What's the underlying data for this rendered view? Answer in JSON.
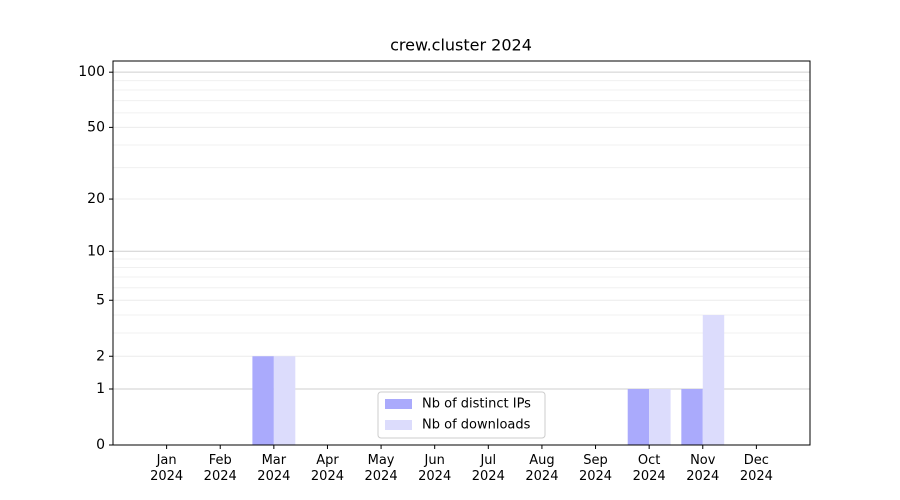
{
  "chart_data": {
    "type": "bar",
    "title": "crew.cluster 2024",
    "categories": [
      "Jan\n2024",
      "Feb\n2024",
      "Mar\n2024",
      "Apr\n2024",
      "May\n2024",
      "Jun\n2024",
      "Jul\n2024",
      "Aug\n2024",
      "Sep\n2024",
      "Oct\n2024",
      "Nov\n2024",
      "Dec\n2024"
    ],
    "series": [
      {
        "name": "Nb of distinct IPs",
        "color": "#aaaafc",
        "values": [
          0,
          0,
          2,
          0,
          0,
          0,
          0,
          0,
          0,
          1,
          1,
          0
        ]
      },
      {
        "name": "Nb of downloads",
        "color": "#dcdcfc",
        "values": [
          0,
          0,
          2,
          0,
          0,
          0,
          0,
          0,
          0,
          1,
          4,
          0
        ]
      }
    ],
    "yscale": "log1p",
    "ylim": [
      0,
      115
    ],
    "yticks": [
      0,
      1,
      2,
      5,
      10,
      20,
      50,
      100
    ],
    "minor_yticks": [
      3,
      4,
      6,
      7,
      8,
      9,
      30,
      40,
      60,
      70,
      80,
      90
    ],
    "grid": true,
    "legend": "lower center"
  }
}
